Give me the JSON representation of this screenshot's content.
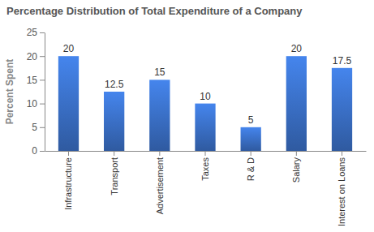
{
  "chart_data": {
    "type": "bar",
    "title": "Percentage Distribution of Total Expenditure of a Company",
    "y_label": "Percent Spent",
    "categories": [
      "Infrastructure",
      "Transport",
      "Advertisement",
      "Taxes",
      "R & D",
      "Salary",
      "Interest on Loans"
    ],
    "values": [
      20,
      12.5,
      15,
      10,
      5,
      20,
      17.5
    ],
    "color": "#3a6fc6",
    "ylim": [
      0,
      25
    ],
    "yticks": [
      0,
      5,
      10,
      15,
      20,
      25
    ],
    "grid": false,
    "data_labels": true
  }
}
